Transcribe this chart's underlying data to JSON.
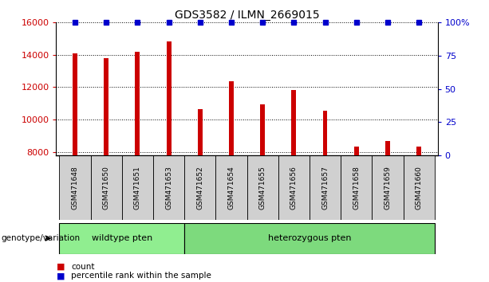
{
  "title": "GDS3582 / ILMN_2669015",
  "samples": [
    "GSM471648",
    "GSM471650",
    "GSM471651",
    "GSM471653",
    "GSM471652",
    "GSM471654",
    "GSM471655",
    "GSM471656",
    "GSM471657",
    "GSM471658",
    "GSM471659",
    "GSM471660"
  ],
  "counts": [
    14100,
    13800,
    14200,
    14850,
    10650,
    12350,
    10950,
    11850,
    10550,
    8350,
    8650,
    8350
  ],
  "percentile_ranks": [
    100,
    100,
    100,
    100,
    100,
    100,
    100,
    100,
    100,
    100,
    100,
    100
  ],
  "ylim_left": [
    7800,
    16000
  ],
  "ylim_right": [
    0,
    100
  ],
  "yticks_left": [
    8000,
    10000,
    12000,
    14000,
    16000
  ],
  "yticks_right": [
    0,
    25,
    50,
    75,
    100
  ],
  "bar_color": "#cc0000",
  "dot_color": "#0000cc",
  "n_wildtype": 4,
  "n_heterozygous": 8,
  "wildtype_label": "wildtype pten",
  "heterozygous_label": "heterozygous pten",
  "genotype_label": "genotype/variation",
  "legend_count": "count",
  "legend_percentile": "percentile rank within the sample",
  "wildtype_color": "#90ee90",
  "heterozygous_color": "#7dda7d",
  "sample_box_color": "#d0d0d0",
  "grid_color": "#000000",
  "tick_label_color_left": "#cc0000",
  "tick_label_color_right": "#0000cc"
}
